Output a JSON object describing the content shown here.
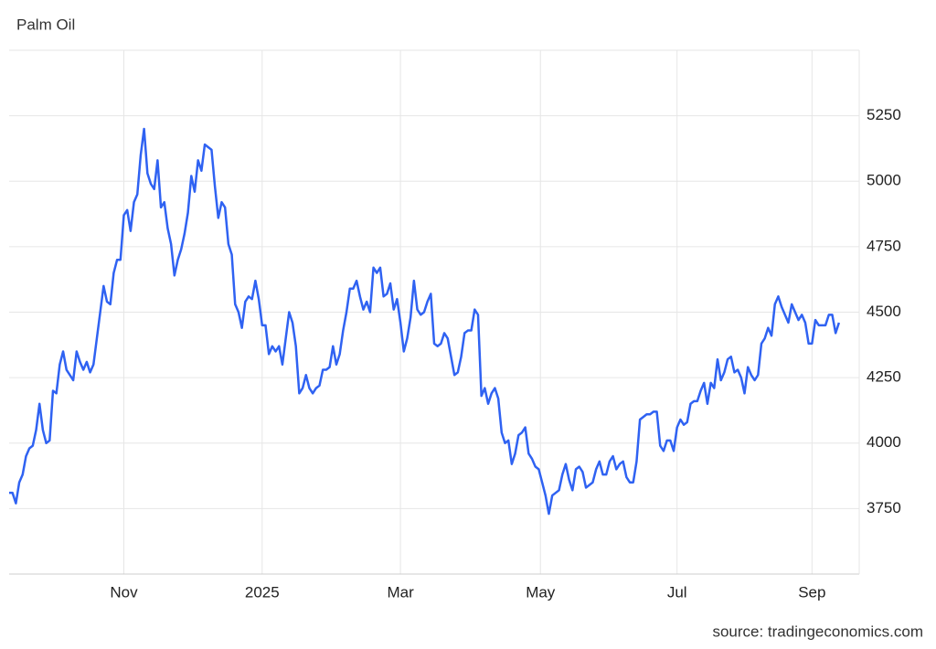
{
  "chart_data": {
    "type": "line",
    "title": "Palm Oil",
    "source": "source: tradingeconomics.com",
    "series": [
      {
        "name": "Palm Oil",
        "color": "#2f62f2",
        "values": [
          3810,
          3810,
          3770,
          3850,
          3880,
          3950,
          3980,
          3990,
          4050,
          4150,
          4050,
          4000,
          4010,
          4200,
          4190,
          4300,
          4350,
          4280,
          4260,
          4240,
          4350,
          4310,
          4280,
          4310,
          4270,
          4300,
          4400,
          4500,
          4600,
          4540,
          4530,
          4650,
          4700,
          4700,
          4870,
          4890,
          4810,
          4920,
          4950,
          5100,
          5200,
          5030,
          4990,
          4970,
          5080,
          4900,
          4920,
          4820,
          4760,
          4640,
          4700,
          4740,
          4800,
          4880,
          5020,
          4960,
          5080,
          5040,
          5140,
          5130,
          5120,
          4980,
          4860,
          4920,
          4900,
          4760,
          4720,
          4530,
          4500,
          4440,
          4540,
          4560,
          4550,
          4620,
          4550,
          4450,
          4450,
          4340,
          4370,
          4350,
          4370,
          4300,
          4400,
          4500,
          4460,
          4370,
          4190,
          4210,
          4260,
          4210,
          4190,
          4210,
          4220,
          4280,
          4280,
          4290,
          4370,
          4300,
          4340,
          4430,
          4500,
          4590,
          4590,
          4620,
          4560,
          4510,
          4540,
          4500,
          4670,
          4650,
          4670,
          4560,
          4570,
          4610,
          4510,
          4550,
          4460,
          4350,
          4400,
          4480,
          4620,
          4510,
          4490,
          4500,
          4540,
          4570,
          4380,
          4370,
          4380,
          4420,
          4400,
          4330,
          4260,
          4270,
          4330,
          4420,
          4430,
          4430,
          4510,
          4490,
          4180,
          4210,
          4150,
          4190,
          4210,
          4170,
          4040,
          4000,
          4010,
          3920,
          3960,
          4030,
          4040,
          4060,
          3960,
          3940,
          3910,
          3900,
          3850,
          3800,
          3730,
          3800,
          3810,
          3820,
          3880,
          3920,
          3860,
          3820,
          3900,
          3910,
          3890,
          3830,
          3840,
          3850,
          3900,
          3930,
          3880,
          3880,
          3930,
          3950,
          3900,
          3920,
          3930,
          3870,
          3850,
          3850,
          3930,
          4090,
          4100,
          4110,
          4110,
          4120,
          4120,
          3990,
          3970,
          4010,
          4010,
          3970,
          4060,
          4090,
          4070,
          4080,
          4150,
          4160,
          4160,
          4200,
          4230,
          4150,
          4230,
          4210,
          4320,
          4240,
          4270,
          4320,
          4330,
          4270,
          4280,
          4250,
          4190,
          4290,
          4260,
          4240,
          4260,
          4380,
          4400,
          4440,
          4410,
          4530,
          4560,
          4520,
          4490,
          4460,
          4530,
          4500,
          4470,
          4490,
          4460,
          4380,
          4380,
          4470,
          4450,
          4450,
          4450,
          4490,
          4490,
          4420,
          4460
        ]
      }
    ],
    "xlim": [
      0,
      252
    ],
    "xticks": [
      {
        "value": 34,
        "label": "Nov"
      },
      {
        "value": 75,
        "label": "2025"
      },
      {
        "value": 116,
        "label": "Mar"
      },
      {
        "value": 157.5,
        "label": "May"
      },
      {
        "value": 198,
        "label": "Jul"
      },
      {
        "value": 238,
        "label": "Sep"
      }
    ],
    "ylim": [
      3500,
      5500
    ],
    "yticks": [
      3750,
      4000,
      4250,
      4500,
      4750,
      5000,
      5250
    ],
    "grid": true
  }
}
